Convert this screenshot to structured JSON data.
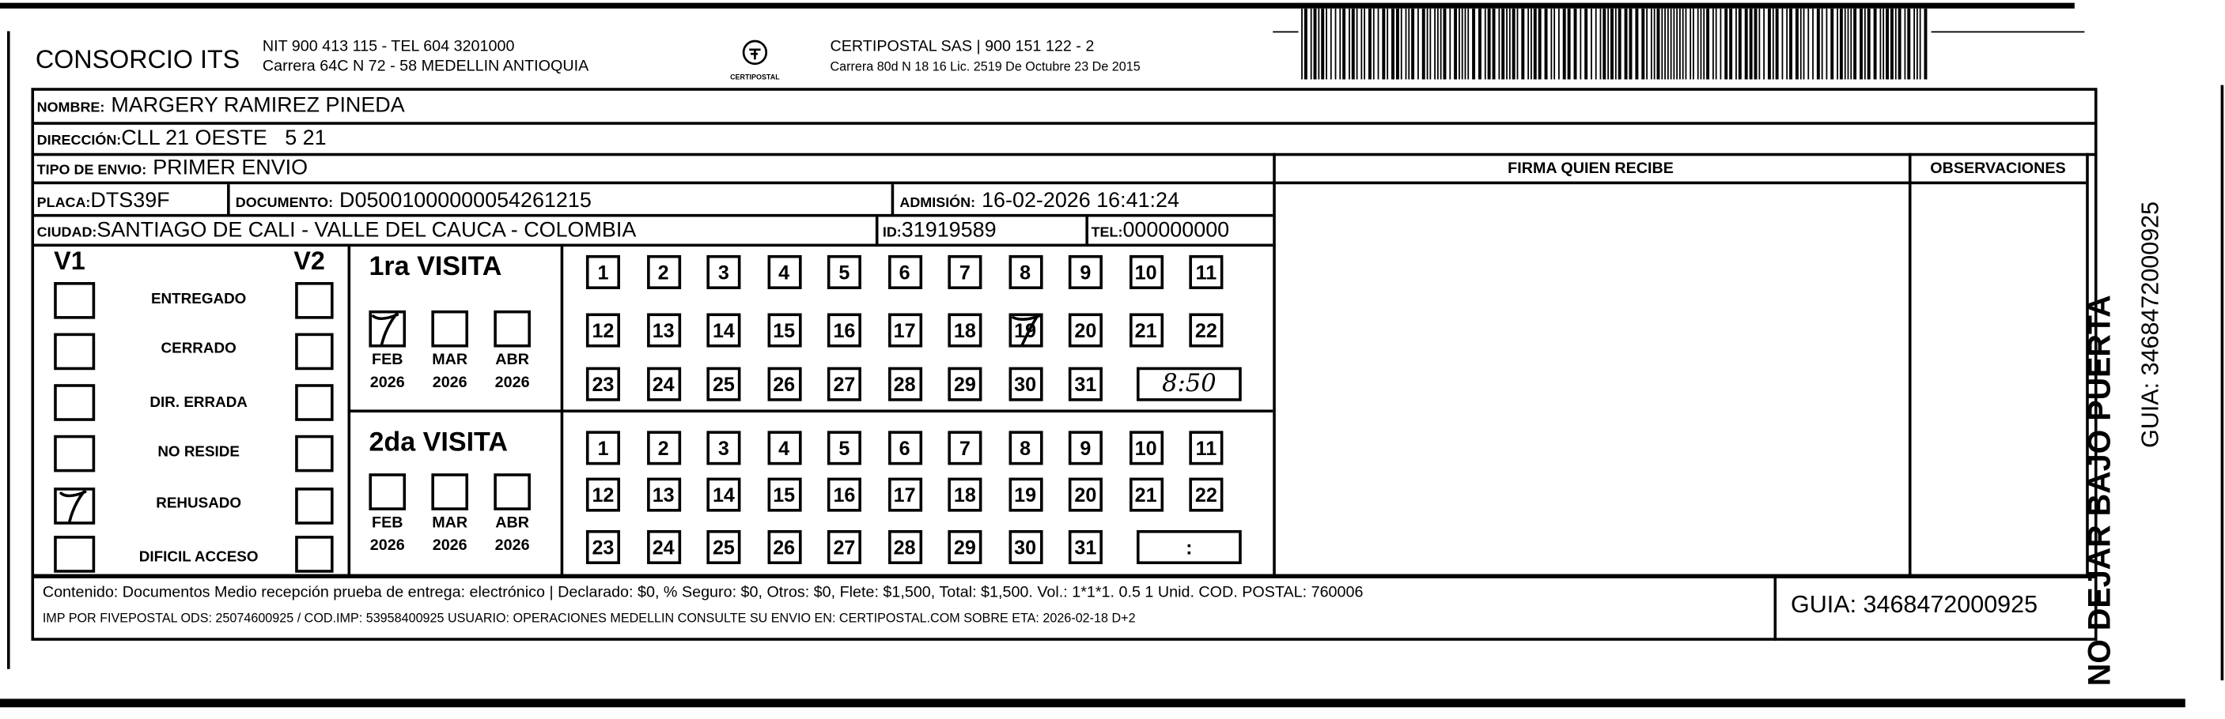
{
  "header": {
    "company": "CONSORCIO ITS",
    "company_line1": "NIT 900 413 115 - TEL 604 3201000",
    "company_line2": "Carrera 64C N 72 - 58 MEDELLIN ANTIOQUIA",
    "logo_text": "CERTIPOSTAL",
    "carrier_line1": "CERTIPOSTAL SAS | 900 151 122 - 2",
    "carrier_line2": "Carrera 80d N 18 16  Lic. 2519 De Octubre 23 De 2015"
  },
  "recipient": {
    "nombre_label": "NOMBRE:",
    "nombre": "MARGERY RAMIREZ PINEDA",
    "direccion_label": "DIRECCIÓN:",
    "direccion": "CLL 21 OESTE   5 21",
    "tipo_label": "TIPO DE ENVIO:",
    "tipo": "PRIMER ENVIO",
    "placa_label": "PLACA:",
    "placa": "DTS39F",
    "documento_label": "DOCUMENTO:",
    "documento": "D05001000000054261215",
    "admision_label": "ADMISIÓN:",
    "admision": "16-02-2026 16:41:24",
    "ciudad_label": "CIUDAD:",
    "ciudad": "SANTIAGO DE CALI - VALLE DEL CAUCA - COLOMBIA",
    "id_label": "ID:",
    "id": "31919589",
    "tel_label": "TEL:",
    "tel": "000000000"
  },
  "columns": {
    "firma": "FIRMA QUIEN RECIBE",
    "observaciones": "OBSERVACIONES"
  },
  "status": {
    "v1_label": "V1",
    "v2_label": "V2",
    "items": [
      {
        "label": "ENTREGADO",
        "v1": false,
        "v2": false
      },
      {
        "label": "CERRADO",
        "v1": false,
        "v2": false
      },
      {
        "label": "DIR. ERRADA",
        "v1": false,
        "v2": false
      },
      {
        "label": "NO RESIDE",
        "v1": false,
        "v2": false
      },
      {
        "label": "REHUSADO",
        "v1": true,
        "v2": false
      },
      {
        "label": "DIFICIL ACCESO",
        "v1": false,
        "v2": false
      }
    ]
  },
  "visits": [
    {
      "title": "1ra VISITA",
      "months": [
        {
          "m": "FEB",
          "y": "2026",
          "checked": true
        },
        {
          "m": "MAR",
          "y": "2026",
          "checked": false
        },
        {
          "m": "ABR",
          "y": "2026",
          "checked": false
        }
      ],
      "marked_day": 19,
      "time": "8:50"
    },
    {
      "title": "2da VISITA",
      "months": [
        {
          "m": "FEB",
          "y": "2026",
          "checked": false
        },
        {
          "m": "MAR",
          "y": "2026",
          "checked": false
        },
        {
          "m": "ABR",
          "y": "2026",
          "checked": false
        }
      ],
      "marked_day": null,
      "time": ":"
    }
  ],
  "footer": {
    "line1": "Contenido: Documentos Medio recepción prueba de entrega: electrónico | Declarado: $0, % Seguro: $0, Otros: $0, Flete: $1,500, Total: $1,500. Vol.: 1*1*1. 0.5  1 Unid. COD. POSTAL: 760006",
    "line2": "IMP POR FIVEPOSTAL ODS: 25074600925 / COD.IMP: 53958400925 USUARIO: OPERACIONES MEDELLIN CONSULTE SU ENVIO EN: CERTIPOSTAL.COM SOBRE ETA: 2026-02-18 D+2",
    "guia": "GUIA: 3468472000925"
  },
  "side": {
    "warning": "NO DEJAR BAJO PUERTA",
    "guia": "GUIA: 3468472000925"
  }
}
